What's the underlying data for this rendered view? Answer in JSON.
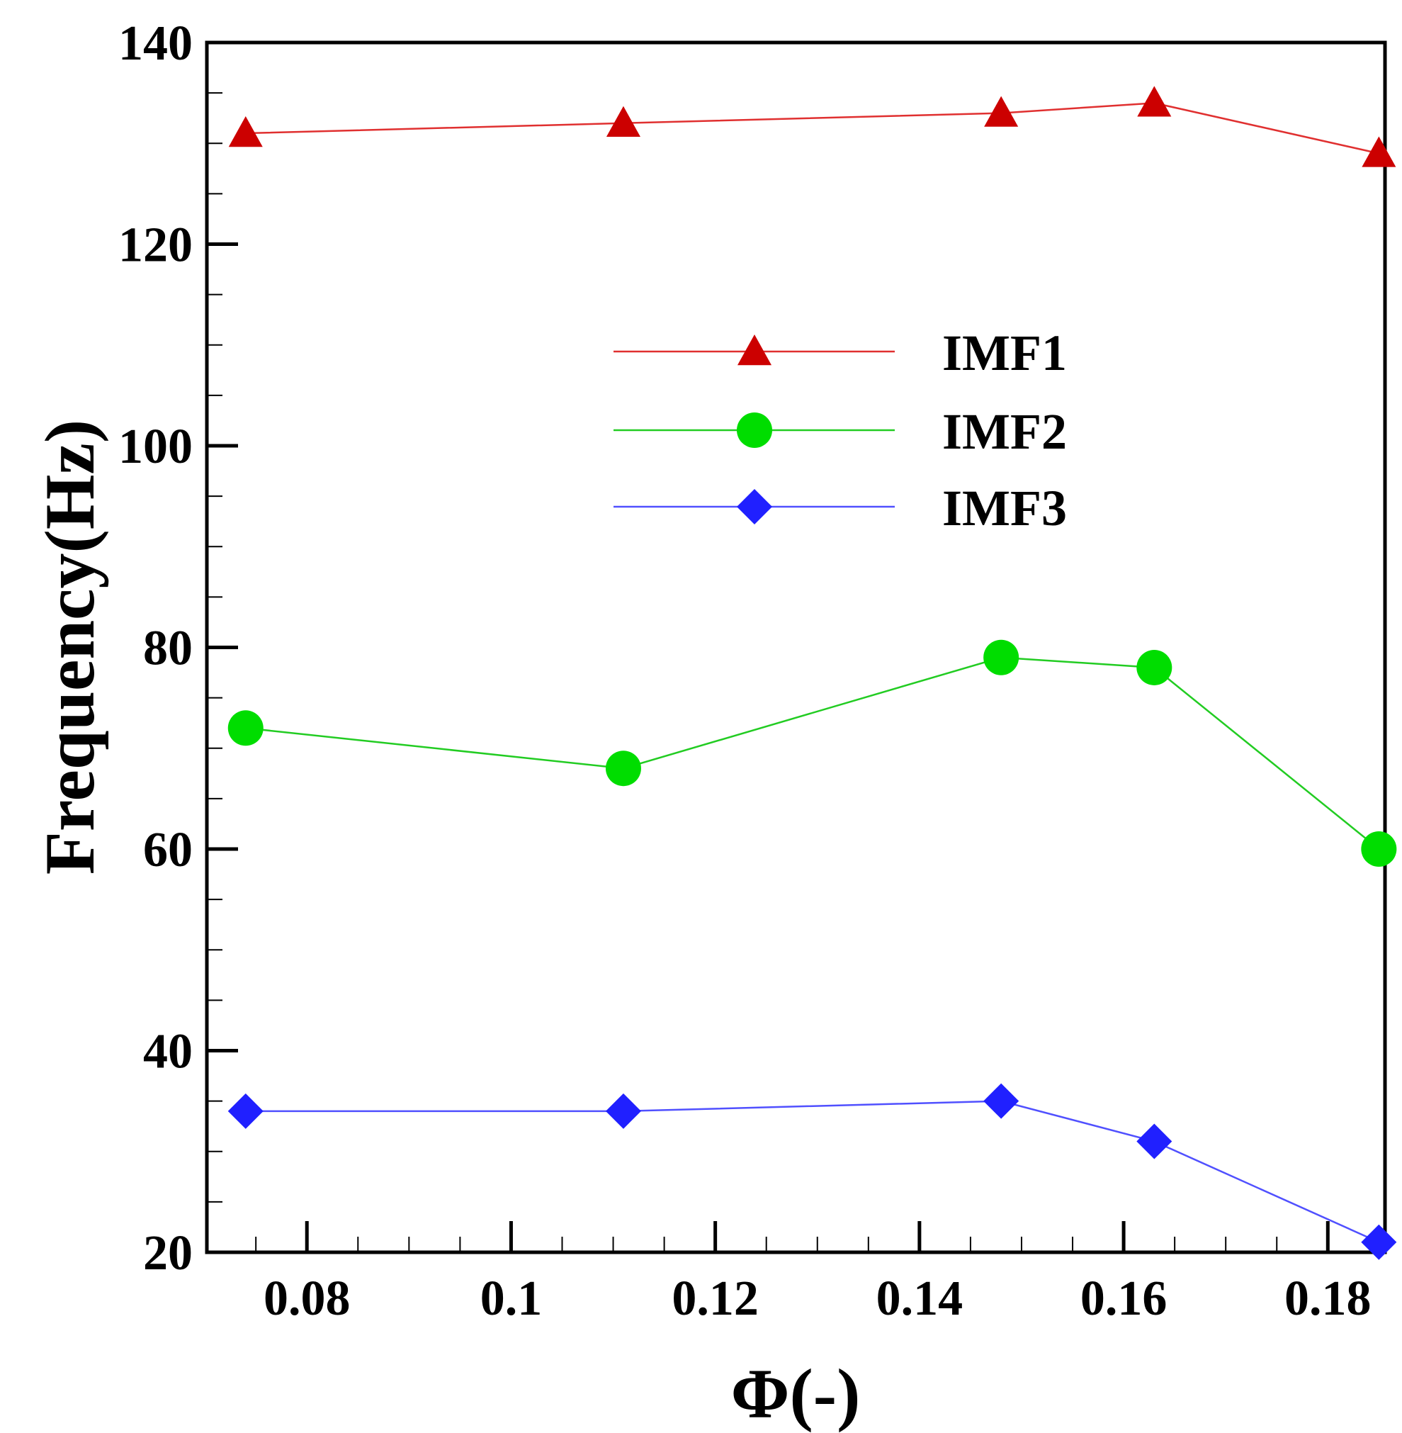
{
  "chart_data": {
    "type": "line",
    "title": "",
    "xlabel": "Φ(-)",
    "ylabel": "Frequency(Hz)",
    "xlim": [
      0.0702,
      0.1856
    ],
    "ylim": [
      20,
      140
    ],
    "xticks": [
      0.08,
      0.1,
      0.12,
      0.14,
      0.16,
      0.18
    ],
    "xtick_labels": [
      "0.08",
      "0.1",
      "0.12",
      "0.14",
      "0.16",
      "0.18"
    ],
    "yticks": [
      20,
      40,
      60,
      80,
      100,
      120,
      140
    ],
    "ytick_labels": [
      "20",
      "40",
      "60",
      "80",
      "100",
      "120",
      "140"
    ],
    "x": [
      0.074,
      0.111,
      0.148,
      0.163,
      0.185
    ],
    "series": [
      {
        "name": "IMF1",
        "marker": "triangle",
        "color": "#e03030",
        "marker_color": "#cc0000",
        "values": [
          131,
          132,
          133,
          134,
          129
        ]
      },
      {
        "name": "IMF2",
        "marker": "circle",
        "color": "#22cc22",
        "marker_color": "#00dd00",
        "values": [
          72,
          68,
          79,
          78,
          60
        ]
      },
      {
        "name": "IMF3",
        "marker": "diamond",
        "color": "#5050ff",
        "marker_color": "#2020ff",
        "values": [
          34,
          34,
          35,
          31,
          21
        ]
      }
    ],
    "legend_position": "upper-middle",
    "grid": false
  }
}
